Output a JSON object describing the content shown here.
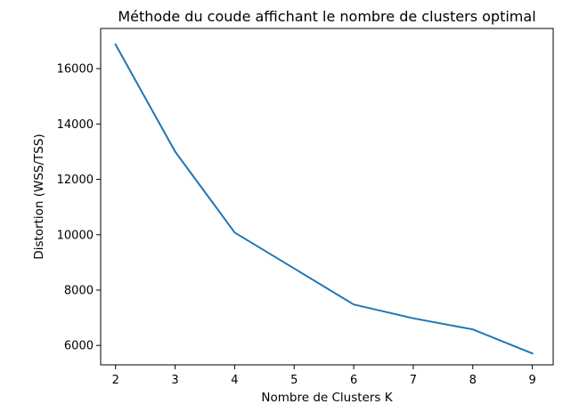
{
  "chart_data": {
    "type": "line",
    "title": "Méthode du coude affichant le nombre de clusters optimal",
    "xlabel": "Nombre de Clusters K",
    "ylabel": "Distortion (WSS/TSS)",
    "x": [
      2,
      3,
      4,
      5,
      6,
      7,
      8,
      9
    ],
    "series": [
      {
        "values": [
          16870,
          13000,
          10080,
          8780,
          7480,
          6980,
          6580,
          5710
        ]
      }
    ],
    "xlim": [
      1.75,
      9.35
    ],
    "ylim": [
      5300,
      17450
    ],
    "xticks": [
      2,
      3,
      4,
      5,
      6,
      7,
      8,
      9
    ],
    "yticks": [
      6000,
      8000,
      10000,
      12000,
      14000,
      16000
    ],
    "grid": false,
    "line_color": "#1f77b4"
  }
}
